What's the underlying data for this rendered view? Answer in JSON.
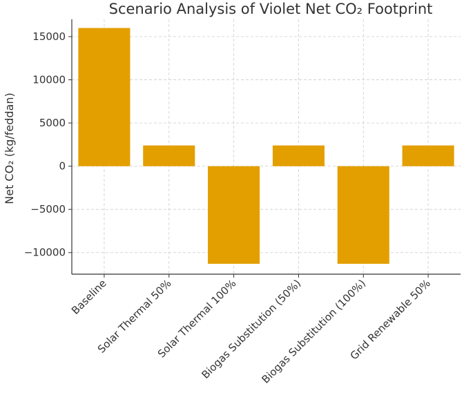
{
  "chart_data": {
    "type": "bar",
    "title": "Scenario Analysis of Violet Net CO₂ Footprint",
    "xlabel": "",
    "ylabel": "Net CO₂ (kg/feddan)",
    "categories": [
      "Baseline",
      "Solar Thermal 50%",
      "Solar Thermal 100%",
      "Biogas Substitution (50%)",
      "Biogas Substitution (100%)",
      "Grid Renewable 50%"
    ],
    "values": [
      16000,
      2400,
      -11300,
      2400,
      -11300,
      2400
    ],
    "ylim": [
      -12500,
      17000
    ],
    "yticks": [
      -10000,
      -5000,
      0,
      5000,
      10000,
      15000
    ],
    "ytick_labels": [
      "−10000",
      "−5000",
      "0",
      "5000",
      "10000",
      "15000"
    ],
    "bar_color": "#E39F00",
    "grid": true
  }
}
